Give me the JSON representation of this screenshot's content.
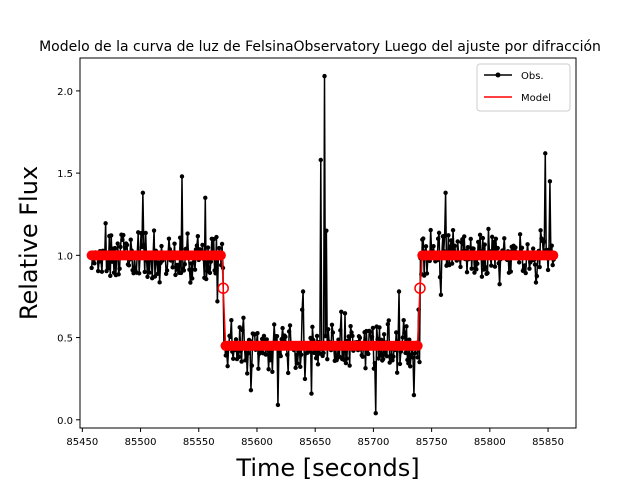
{
  "chart_data": {
    "type": "line",
    "title": "Modelo de la curva de luz de FelsinaObservatory Luego del ajuste por difracción",
    "xlabel": "Time [seconds]",
    "ylabel": "Relative Flux",
    "xlim": [
      85448,
      85874
    ],
    "ylim": [
      -0.05,
      2.2
    ],
    "xticks": [
      85450,
      85500,
      85550,
      85600,
      85650,
      85700,
      85750,
      85800,
      85850
    ],
    "yticks": [
      0.0,
      0.5,
      1.0,
      1.5,
      2.0
    ],
    "ytick_labels": [
      "0.0",
      "0.5",
      "1.0",
      "1.5",
      "2.0"
    ],
    "grid": false,
    "legend_position": "top-right",
    "series": [
      {
        "name": "Obs.",
        "color": "#000000",
        "marker": "dot",
        "sampling": {
          "start": 85458,
          "end": 85855,
          "step": 0.8,
          "seed": 7
        },
        "segments": [
          {
            "from": 85458,
            "to": 85571,
            "level": 1.0,
            "noise": 0.12
          },
          {
            "from": 85571,
            "to": 85740,
            "level": 0.45,
            "noise": 0.12
          },
          {
            "from": 85740,
            "to": 85855,
            "level": 1.0,
            "noise": 0.12
          }
        ],
        "spikes": [
          {
            "x": 85502,
            "y": 1.38
          },
          {
            "x": 85536,
            "y": 1.48
          },
          {
            "x": 85556,
            "y": 1.35
          },
          {
            "x": 85566,
            "y": 0.72
          },
          {
            "x": 85595,
            "y": 0.18
          },
          {
            "x": 85618,
            "y": 0.09
          },
          {
            "x": 85640,
            "y": 0.78
          },
          {
            "x": 85655,
            "y": 1.58
          },
          {
            "x": 85658,
            "y": 2.09
          },
          {
            "x": 85660,
            "y": 1.15
          },
          {
            "x": 85702,
            "y": 0.04
          },
          {
            "x": 85722,
            "y": 0.78
          },
          {
            "x": 85735,
            "y": 0.15
          },
          {
            "x": 85762,
            "y": 1.38
          },
          {
            "x": 85848,
            "y": 1.62
          },
          {
            "x": 85852,
            "y": 1.45
          }
        ]
      },
      {
        "name": "Model",
        "color": "#ff0000",
        "points": [
          [
            85458,
            1.0
          ],
          [
            85570,
            1.0
          ],
          [
            85571,
            0.8
          ],
          [
            85573,
            0.45
          ],
          [
            85738,
            0.45
          ],
          [
            85740,
            0.8
          ],
          [
            85742,
            1.0
          ],
          [
            85855,
            1.0
          ]
        ],
        "marker_step": 1.5
      }
    ]
  }
}
